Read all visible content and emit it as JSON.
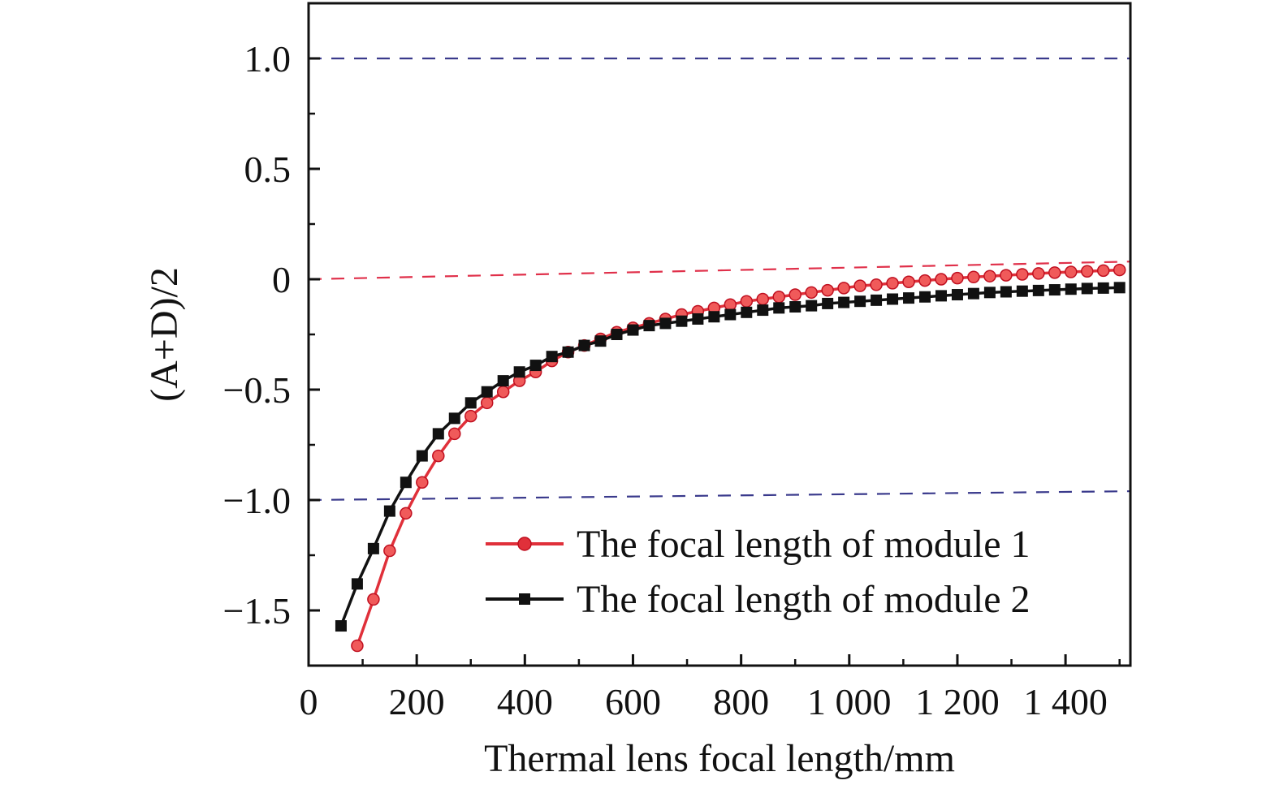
{
  "chart_data": {
    "type": "line",
    "xlabel": "Thermal lens focal length/mm",
    "ylabel": "(A+D)/2",
    "xlim": [
      0,
      1520
    ],
    "ylim": [
      -1.75,
      1.25
    ],
    "xticks": [
      0,
      200,
      400,
      600,
      800,
      1000,
      1200,
      1400
    ],
    "xtick_labels": [
      "0",
      "200",
      "400",
      "600",
      "800",
      "1 000",
      "1 200",
      "1 400"
    ],
    "yticks": [
      1.0,
      0.5,
      0,
      -0.5,
      -1.0,
      -1.5
    ],
    "ytick_labels": [
      "1.0",
      "0.5",
      "0",
      "−0.5",
      "−1.0",
      "−1.5"
    ],
    "grid": false,
    "legend_position": "bottom-right",
    "reference_lines": [
      {
        "from": [
          0,
          1.0
        ],
        "to": [
          1520,
          1.0
        ],
        "color": "#3a3a8c"
      },
      {
        "from": [
          0,
          0
        ],
        "to": [
          1520,
          0.08
        ],
        "color": "#e0304a"
      },
      {
        "from": [
          0,
          -1.0
        ],
        "to": [
          1520,
          -0.96
        ],
        "color": "#3a3a8c"
      }
    ],
    "series": [
      {
        "name": "The focal length of module 1",
        "color": "#e0303a",
        "marker": "circle",
        "x": [
          90,
          120,
          150,
          180,
          210,
          240,
          270,
          300,
          330,
          360,
          390,
          420,
          450,
          480,
          510,
          540,
          570,
          600,
          630,
          660,
          690,
          720,
          750,
          780,
          810,
          840,
          870,
          900,
          930,
          960,
          990,
          1020,
          1050,
          1080,
          1110,
          1140,
          1170,
          1200,
          1230,
          1260,
          1290,
          1320,
          1350,
          1380,
          1410,
          1440,
          1470,
          1500
        ],
        "y": [
          -1.66,
          -1.45,
          -1.23,
          -1.06,
          -0.92,
          -0.8,
          -0.7,
          -0.62,
          -0.56,
          -0.51,
          -0.46,
          -0.42,
          -0.37,
          -0.33,
          -0.3,
          -0.27,
          -0.24,
          -0.22,
          -0.2,
          -0.18,
          -0.16,
          -0.145,
          -0.13,
          -0.115,
          -0.1,
          -0.09,
          -0.08,
          -0.07,
          -0.06,
          -0.05,
          -0.04,
          -0.03,
          -0.025,
          -0.018,
          -0.012,
          -0.006,
          0.0,
          0.005,
          0.01,
          0.014,
          0.018,
          0.022,
          0.026,
          0.03,
          0.033,
          0.036,
          0.039,
          0.042
        ]
      },
      {
        "name": "The focal length of module 2",
        "color": "#111111",
        "marker": "square",
        "x": [
          60,
          90,
          120,
          150,
          180,
          210,
          240,
          270,
          300,
          330,
          360,
          390,
          420,
          450,
          480,
          510,
          540,
          570,
          600,
          630,
          660,
          690,
          720,
          750,
          780,
          810,
          840,
          870,
          900,
          930,
          960,
          990,
          1020,
          1050,
          1080,
          1110,
          1140,
          1170,
          1200,
          1230,
          1260,
          1290,
          1320,
          1350,
          1380,
          1410,
          1440,
          1470,
          1500
        ],
        "y": [
          -1.57,
          -1.38,
          -1.22,
          -1.05,
          -0.92,
          -0.8,
          -0.7,
          -0.63,
          -0.56,
          -0.51,
          -0.46,
          -0.42,
          -0.39,
          -0.35,
          -0.33,
          -0.3,
          -0.28,
          -0.25,
          -0.23,
          -0.21,
          -0.2,
          -0.19,
          -0.18,
          -0.17,
          -0.16,
          -0.15,
          -0.14,
          -0.13,
          -0.125,
          -0.12,
          -0.11,
          -0.105,
          -0.1,
          -0.095,
          -0.09,
          -0.085,
          -0.08,
          -0.075,
          -0.07,
          -0.065,
          -0.06,
          -0.057,
          -0.054,
          -0.051,
          -0.048,
          -0.045,
          -0.042,
          -0.04,
          -0.038
        ]
      }
    ]
  }
}
